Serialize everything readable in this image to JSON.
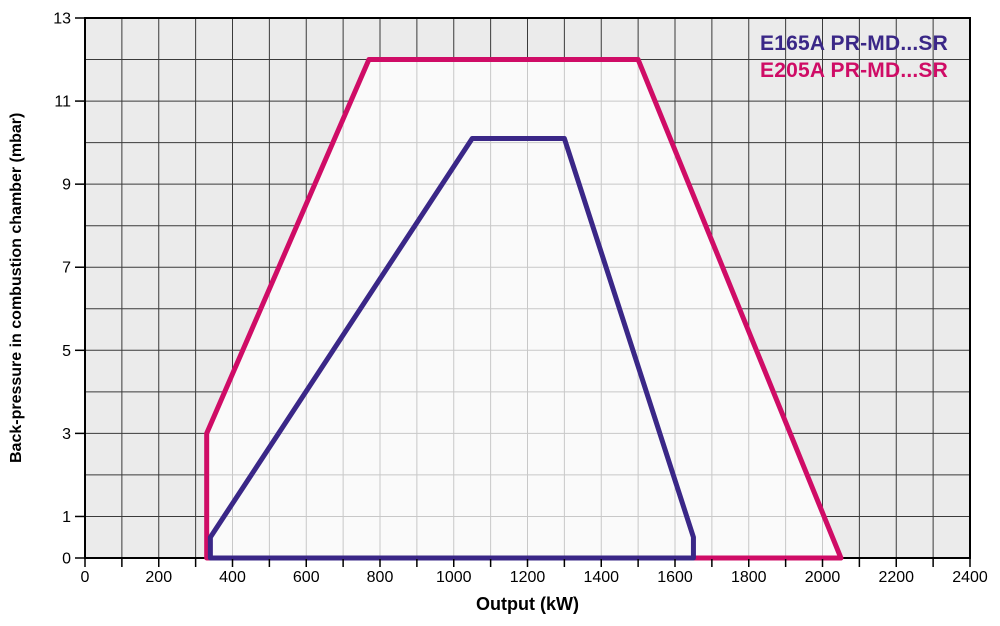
{
  "chart_data": {
    "type": "line",
    "title": "",
    "xlabel": "Output (kW)",
    "ylabel": "Back-pressure in combustion chamber (mbar)",
    "xlim": [
      0,
      2400
    ],
    "ylim": [
      0,
      13
    ],
    "x_tick_labels": [
      0,
      200,
      400,
      600,
      800,
      1000,
      1200,
      1400,
      1600,
      1800,
      2000,
      2200,
      2400
    ],
    "x_minor_tick_step": 100,
    "y_tick_labels": [
      0,
      1,
      3,
      5,
      7,
      9,
      11,
      13
    ],
    "grid": {
      "x_step_kw": 100,
      "y_step_mbar": 1,
      "line_color": "#3a3a3a",
      "outside_background": "#ebebeb",
      "inside_fill": "rgba(255,255,255,0.72)",
      "border_color": "#000000"
    },
    "legend_position": "top-right",
    "series": [
      {
        "name": "E165A PR-MD...SR",
        "color": "#3a2787",
        "fill_inside": false,
        "closed": true,
        "points": [
          [
            340,
            0
          ],
          [
            340,
            0.5
          ],
          [
            1050,
            10.1
          ],
          [
            1300,
            10.1
          ],
          [
            1650,
            0.5
          ],
          [
            1650,
            0
          ]
        ]
      },
      {
        "name": "E205A PR-MD...SR",
        "color": "#cf0c66",
        "fill_inside": true,
        "closed": true,
        "points": [
          [
            330,
            0
          ],
          [
            330,
            3
          ],
          [
            770,
            12
          ],
          [
            1500,
            12
          ],
          [
            2050,
            0
          ]
        ]
      }
    ]
  }
}
